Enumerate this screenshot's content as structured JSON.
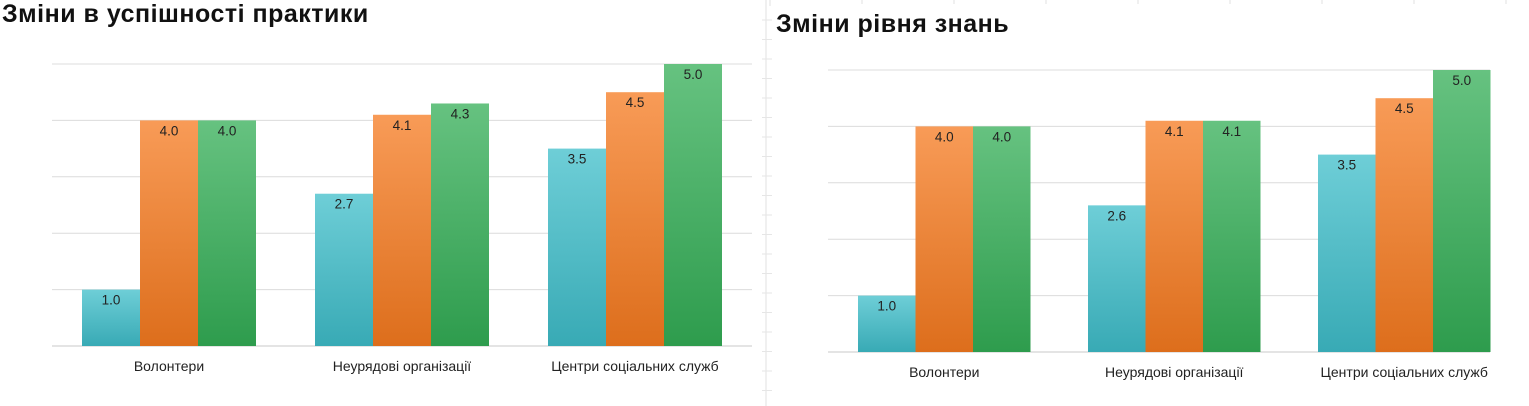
{
  "chart_data": [
    {
      "type": "bar",
      "title": "Зміни в успішності практики",
      "categories": [
        "Волонтери",
        "Неурядові організації",
        "Центри соціальних служб"
      ],
      "series": [
        {
          "values": [
            1.0,
            2.7,
            3.5
          ],
          "color": "#3ebdc9"
        },
        {
          "values": [
            4.0,
            4.1,
            4.5
          ],
          "color": "#f57a1f"
        },
        {
          "values": [
            4.0,
            4.3,
            5.0
          ],
          "color": "#33ad55"
        }
      ],
      "data_labels": [
        [
          "1.0",
          "2.7",
          "3.5"
        ],
        [
          "4.0",
          "4.1",
          "4.5"
        ],
        [
          "4.0",
          "4.3",
          "5.0"
        ]
      ],
      "ylim": [
        0,
        5
      ],
      "grid": true,
      "xlabel": "",
      "ylabel": ""
    },
    {
      "type": "bar",
      "title": "Зміни рівня знань",
      "categories": [
        "Волонтери",
        "Неурядові організації",
        "Центри соціальних служб"
      ],
      "series": [
        {
          "values": [
            1.0,
            2.6,
            3.5
          ],
          "color": "#3ebdc9"
        },
        {
          "values": [
            4.0,
            4.1,
            4.5
          ],
          "color": "#f57a1f"
        },
        {
          "values": [
            4.0,
            4.1,
            5.0
          ],
          "color": "#33ad55"
        }
      ],
      "data_labels": [
        [
          "1.0",
          "2.6",
          "3.5"
        ],
        [
          "4.0",
          "4.1",
          "4.5"
        ],
        [
          "4.0",
          "4.1",
          "5.0"
        ]
      ],
      "ylim": [
        0,
        5
      ],
      "grid": true,
      "xlabel": "",
      "ylabel": ""
    }
  ]
}
